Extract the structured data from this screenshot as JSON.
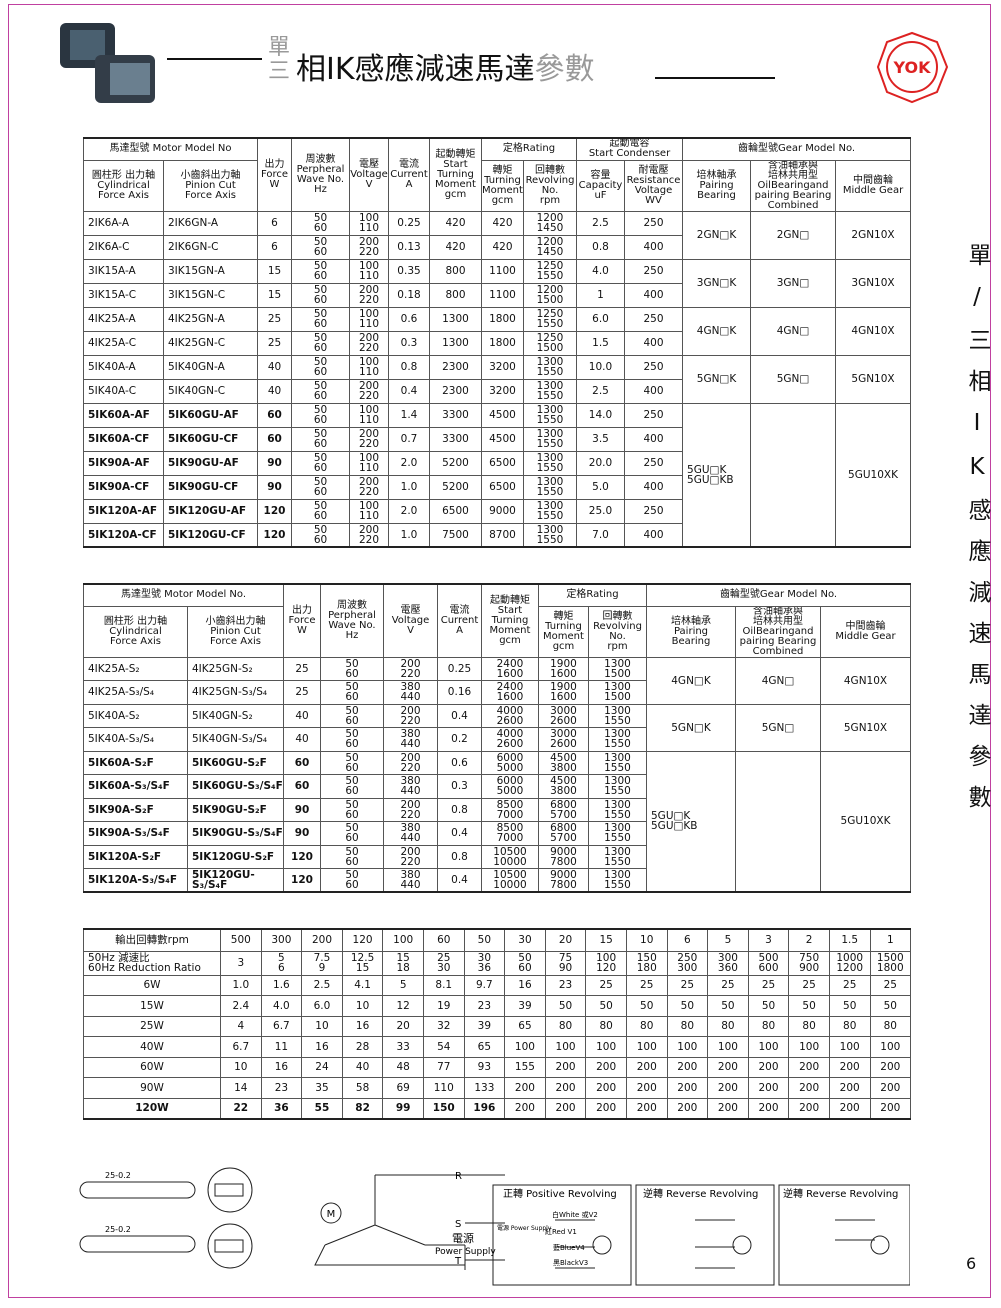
{
  "header": {
    "title_top": "單",
    "title_bottom": "三",
    "title_main": "相IK感應減速馬達",
    "title_tail": "參數",
    "logo": "YOK"
  },
  "side_text": "單/三相IK感應減速馬達參數",
  "page_number": "6",
  "table1": {
    "head_top": [
      [
        "馬達型號 Motor Model No"
      ],
      [
        "出力",
        "Force",
        "W"
      ],
      [
        "周波數",
        "Perpheral",
        "Wave No.",
        "Hz"
      ],
      [
        "電壓",
        "Voltage",
        "V"
      ],
      [
        "電流",
        "Current",
        "A"
      ],
      [
        "起動轉矩",
        "Start",
        "Turning",
        "Moment",
        "gcm"
      ],
      [
        "定格Rating"
      ],
      [
        "起動電容",
        "Start Condenser"
      ],
      [
        "齒輪型號Gear Model No."
      ]
    ],
    "head_sub": [
      [
        "圓柱形 出力軸",
        "Cylindrical",
        "Force Axis"
      ],
      [
        "小齒斜出力軸",
        "Pinion Cut",
        "Force Axis"
      ],
      [
        "轉矩",
        "Turning",
        "Moment",
        "gcm"
      ],
      [
        "回轉數",
        "Revolving",
        "No.",
        "rpm"
      ],
      [
        "容量",
        "Capacity",
        "uF"
      ],
      [
        "耐電壓",
        "Resistance",
        "Voltage",
        "WV"
      ],
      [
        "培林軸承",
        "Pairing",
        "Bearing"
      ],
      [
        "含油軸承與",
        "培林共用型",
        "OilBearingand",
        "pairing Bearing",
        "Combined"
      ],
      [
        "中間齒輪",
        "Middle Gear"
      ]
    ],
    "rows": [
      [
        "2IK6A-A",
        "2IK6GN-A",
        "6",
        [
          "50",
          "60"
        ],
        [
          "100",
          "110"
        ],
        "0.25",
        "420",
        "420",
        [
          "1200",
          "1450"
        ],
        "2.5",
        "250"
      ],
      [
        "2IK6A-C",
        "2IK6GN-C",
        "6",
        [
          "50",
          "60"
        ],
        [
          "200",
          "220"
        ],
        "0.13",
        "420",
        "420",
        [
          "1200",
          "1450"
        ],
        "0.8",
        "400"
      ],
      [
        "3IK15A-A",
        "3IK15GN-A",
        "15",
        [
          "50",
          "60"
        ],
        [
          "100",
          "110"
        ],
        "0.35",
        "800",
        "1100",
        [
          "1250",
          "1550"
        ],
        "4.0",
        "250"
      ],
      [
        "3IK15A-C",
        "3IK15GN-C",
        "15",
        [
          "50",
          "60"
        ],
        [
          "200",
          "220"
        ],
        "0.18",
        "800",
        "1100",
        [
          "1200",
          "1500"
        ],
        "1",
        "400"
      ],
      [
        "4IK25A-A",
        "4IK25GN-A",
        "25",
        [
          "50",
          "60"
        ],
        [
          "100",
          "110"
        ],
        "0.6",
        "1300",
        "1800",
        [
          "1250",
          "1550"
        ],
        "6.0",
        "250"
      ],
      [
        "4IK25A-C",
        "4IK25GN-C",
        "25",
        [
          "50",
          "60"
        ],
        [
          "200",
          "220"
        ],
        "0.3",
        "1300",
        "1800",
        [
          "1250",
          "1500"
        ],
        "1.5",
        "400"
      ],
      [
        "5IK40A-A",
        "5IK40GN-A",
        "40",
        [
          "50",
          "60"
        ],
        [
          "100",
          "110"
        ],
        "0.8",
        "2300",
        "3200",
        [
          "1300",
          "1550"
        ],
        "10.0",
        "250"
      ],
      [
        "5IK40A-C",
        "5IK40GN-C",
        "40",
        [
          "50",
          "60"
        ],
        [
          "200",
          "220"
        ],
        "0.4",
        "2300",
        "3200",
        [
          "1300",
          "1550"
        ],
        "2.5",
        "400"
      ],
      [
        "5IK60A-AF",
        "5IK60GU-AF",
        "60",
        [
          "50",
          "60"
        ],
        [
          "100",
          "110"
        ],
        "1.4",
        "3300",
        "4500",
        [
          "1300",
          "1550"
        ],
        "14.0",
        "250"
      ],
      [
        "5IK60A-CF",
        "5IK60GU-CF",
        "60",
        [
          "50",
          "60"
        ],
        [
          "200",
          "220"
        ],
        "0.7",
        "3300",
        "4500",
        [
          "1300",
          "1550"
        ],
        "3.5",
        "400"
      ],
      [
        "5IK90A-AF",
        "5IK90GU-AF",
        "90",
        [
          "50",
          "60"
        ],
        [
          "100",
          "110"
        ],
        "2.0",
        "5200",
        "6500",
        [
          "1300",
          "1550"
        ],
        "20.0",
        "250"
      ],
      [
        "5IK90A-CF",
        "5IK90GU-CF",
        "90",
        [
          "50",
          "60"
        ],
        [
          "200",
          "220"
        ],
        "1.0",
        "5200",
        "6500",
        [
          "1300",
          "1550"
        ],
        "5.0",
        "400"
      ],
      [
        "5IK120A-AF",
        "5IK120GU-AF",
        "120",
        [
          "50",
          "60"
        ],
        [
          "100",
          "110"
        ],
        "2.0",
        "6500",
        "9000",
        [
          "1300",
          "1550"
        ],
        "25.0",
        "250"
      ],
      [
        "5IK120A-CF",
        "5IK120GU-CF",
        "120",
        [
          "50",
          "60"
        ],
        [
          "200",
          "220"
        ],
        "1.0",
        "7500",
        "8700",
        [
          "1300",
          "1550"
        ],
        "7.0",
        "400"
      ]
    ],
    "gear": [
      {
        "pairing": "2GN□K",
        "oil": "2GN□",
        "middle": "2GN10X"
      },
      {
        "pairing": "3GN□K",
        "oil": "3GN□",
        "middle": "3GN10X"
      },
      {
        "pairing": "4GN□K",
        "oil": "4GN□",
        "middle": "4GN10X"
      },
      {
        "pairing": "5GN□K",
        "oil": "5GN□",
        "middle": "5GN10X"
      },
      {
        "pairing": [
          "5GU□K",
          "5GU□KB"
        ],
        "middle": "5GU10XK"
      }
    ]
  },
  "table2": {
    "head_top": [
      [
        "馬達型號 Motor Model No."
      ],
      [
        "出力",
        "Force",
        "W"
      ],
      [
        "周波數",
        "Perpheral",
        "Wave No.",
        "Hz"
      ],
      [
        "電壓",
        "Voltage",
        "V"
      ],
      [
        "電流",
        "Current",
        "A"
      ],
      [
        "起動轉矩",
        "Start",
        "Turning",
        "Moment",
        "gcm"
      ],
      [
        "定格Rating"
      ],
      [
        "齒輪型號Gear Model No."
      ]
    ],
    "head_sub": [
      [
        "圓柱形 出力軸",
        "Cylindrical",
        "Force Axis"
      ],
      [
        "小齒斜出力軸",
        "Pinion Cut",
        "Force Axis"
      ],
      [
        "轉矩",
        "Turning",
        "Moment",
        "gcm"
      ],
      [
        "回轉數",
        "Revolving",
        "No.",
        "rpm"
      ],
      [
        "培林軸承",
        "Pairing",
        "Bearing"
      ],
      [
        "含油軸承與",
        "培林共用型",
        "OilBearingand",
        "pairing Bearing",
        "Combined"
      ],
      [
        "中間齒輪",
        "Middle Gear"
      ]
    ],
    "rows": [
      [
        "4IK25A-S₂",
        "4IK25GN-S₂",
        "25",
        [
          "50",
          "60"
        ],
        [
          "200",
          "220"
        ],
        "0.25",
        [
          "2400",
          "1600"
        ],
        [
          "1900",
          "1600"
        ],
        [
          "1300",
          "1500"
        ]
      ],
      [
        "4IK25A-S₃/S₄",
        "4IK25GN-S₃/S₄",
        "25",
        [
          "50",
          "60"
        ],
        [
          "380",
          "440"
        ],
        "0.16",
        [
          "2400",
          "1600"
        ],
        [
          "1900",
          "1600"
        ],
        [
          "1300",
          "1500"
        ]
      ],
      [
        "5IK40A-S₂",
        "5IK40GN-S₂",
        "40",
        [
          "50",
          "60"
        ],
        [
          "200",
          "220"
        ],
        "0.4",
        [
          "4000",
          "2600"
        ],
        [
          "3000",
          "2600"
        ],
        [
          "1300",
          "1550"
        ]
      ],
      [
        "5IK40A-S₃/S₄",
        "5IK40GN-S₃/S₄",
        "40",
        [
          "50",
          "60"
        ],
        [
          "380",
          "440"
        ],
        "0.2",
        [
          "4000",
          "2600"
        ],
        [
          "3000",
          "2600"
        ],
        [
          "1300",
          "1550"
        ]
      ],
      [
        "5IK60A-S₂F",
        "5IK60GU-S₂F",
        "60",
        [
          "50",
          "60"
        ],
        [
          "200",
          "220"
        ],
        "0.6",
        [
          "6000",
          "5000"
        ],
        [
          "4500",
          "3800"
        ],
        [
          "1300",
          "1550"
        ]
      ],
      [
        "5IK60A-S₃/S₄F",
        "5IK60GU-S₃/S₄F",
        "60",
        [
          "50",
          "60"
        ],
        [
          "380",
          "440"
        ],
        "0.3",
        [
          "6000",
          "5000"
        ],
        [
          "4500",
          "3800"
        ],
        [
          "1300",
          "1550"
        ]
      ],
      [
        "5IK90A-S₂F",
        "5IK90GU-S₂F",
        "90",
        [
          "50",
          "60"
        ],
        [
          "200",
          "220"
        ],
        "0.8",
        [
          "8500",
          "7000"
        ],
        [
          "6800",
          "5700"
        ],
        [
          "1300",
          "1550"
        ]
      ],
      [
        "5IK90A-S₃/S₄F",
        "5IK90GU-S₃/S₄F",
        "90",
        [
          "50",
          "60"
        ],
        [
          "380",
          "440"
        ],
        "0.4",
        [
          "8500",
          "7000"
        ],
        [
          "6800",
          "5700"
        ],
        [
          "1300",
          "1550"
        ]
      ],
      [
        "5IK120A-S₂F",
        "5IK120GU-S₂F",
        "120",
        [
          "50",
          "60"
        ],
        [
          "200",
          "220"
        ],
        "0.8",
        [
          "10500",
          "10000"
        ],
        [
          "9000",
          "7800"
        ],
        [
          "1300",
          "1550"
        ]
      ],
      [
        "5IK120A-S₃/S₄F",
        "5IK120GU-S₃/S₄F",
        "120",
        [
          "50",
          "60"
        ],
        [
          "380",
          "440"
        ],
        "0.4",
        [
          "10500",
          "10000"
        ],
        [
          "9000",
          "7800"
        ],
        [
          "1300",
          "1550"
        ]
      ]
    ],
    "gear": [
      {
        "pairing": "4GN□K",
        "oil": "4GN□",
        "middle": "4GN10X"
      },
      {
        "pairing": "5GN□K",
        "oil": "5GN□",
        "middle": "5GN10X"
      },
      {
        "pairing": [
          "5GU□K",
          "5GU□KB"
        ],
        "middle": "5GU10XK"
      }
    ]
  },
  "table3": {
    "header_label": "輸出回轉數rpm",
    "speeds": [
      "500",
      "300",
      "200",
      "120",
      "100",
      "60",
      "50",
      "30",
      "20",
      "15",
      "10",
      "6",
      "5",
      "3",
      "2",
      "1.5",
      "1"
    ],
    "ratio_label": [
      "50Hz 減速比",
      "60Hz Reduction Ratio"
    ],
    "ratios": [
      "3",
      [
        "5",
        "6"
      ],
      [
        "7.5",
        "9"
      ],
      [
        "12.5",
        "15"
      ],
      [
        "15",
        "18"
      ],
      [
        "25",
        "30"
      ],
      [
        "30",
        "36"
      ],
      [
        "50",
        "60"
      ],
      [
        "75",
        "90"
      ],
      [
        "100",
        "120"
      ],
      [
        "150",
        "180"
      ],
      [
        "250",
        "300"
      ],
      [
        "300",
        "360"
      ],
      [
        "500",
        "600"
      ],
      [
        "750",
        "900"
      ],
      [
        "1000",
        "1200"
      ],
      [
        "1500",
        "1800"
      ]
    ],
    "rows": [
      {
        "label": "6W",
        "values": [
          "1.0",
          "1.6",
          "2.5",
          "4.1",
          "5",
          "8.1",
          "9.7",
          "16",
          "23",
          "25",
          "25",
          "25",
          "25",
          "25",
          "25",
          "25",
          "25"
        ]
      },
      {
        "label": "15W",
        "values": [
          "2.4",
          "4.0",
          "6.0",
          "10",
          "12",
          "19",
          "23",
          "39",
          "50",
          "50",
          "50",
          "50",
          "50",
          "50",
          "50",
          "50",
          "50"
        ]
      },
      {
        "label": "25W",
        "values": [
          "4",
          "6.7",
          "10",
          "16",
          "20",
          "32",
          "39",
          "65",
          "80",
          "80",
          "80",
          "80",
          "80",
          "80",
          "80",
          "80",
          "80"
        ]
      },
      {
        "label": "40W",
        "values": [
          "6.7",
          "11",
          "16",
          "28",
          "33",
          "54",
          "65",
          "100",
          "100",
          "100",
          "100",
          "100",
          "100",
          "100",
          "100",
          "100",
          "100"
        ]
      },
      {
        "label": "60W",
        "values": [
          "10",
          "16",
          "24",
          "40",
          "48",
          "77",
          "93",
          "155",
          "200",
          "200",
          "200",
          "200",
          "200",
          "200",
          "200",
          "200",
          "200"
        ]
      },
      {
        "label": "90W",
        "values": [
          "14",
          "23",
          "35",
          "58",
          "69",
          "110",
          "133",
          "200",
          "200",
          "200",
          "200",
          "200",
          "200",
          "200",
          "200",
          "200",
          "200"
        ]
      },
      {
        "label": "120W",
        "values": [
          "22",
          "36",
          "55",
          "82",
          "99",
          "150",
          "196",
          "200",
          "200",
          "200",
          "200",
          "200",
          "200",
          "200",
          "200",
          "200",
          "200"
        ]
      }
    ]
  },
  "diagrams": {
    "shaft_dim": "25-0.2",
    "shaft_dim_2": "25-0.2",
    "motor": "M",
    "phase_r": "R",
    "phase_s": "S",
    "phase_t": "T",
    "power": "電源",
    "power_en": "Power Supply",
    "positive": "正轉 Positive Revolving",
    "reverse": "逆轉 Reverse Revolving",
    "reverse_2": "逆轉 Reverse Revolving",
    "wire_white": "白White 或V2",
    "wire_red": "紅Red V1",
    "wire_blue": "藍BlueV4",
    "wire_black": "黑BlackV3",
    "wire_power": "電源 Power Supply"
  }
}
